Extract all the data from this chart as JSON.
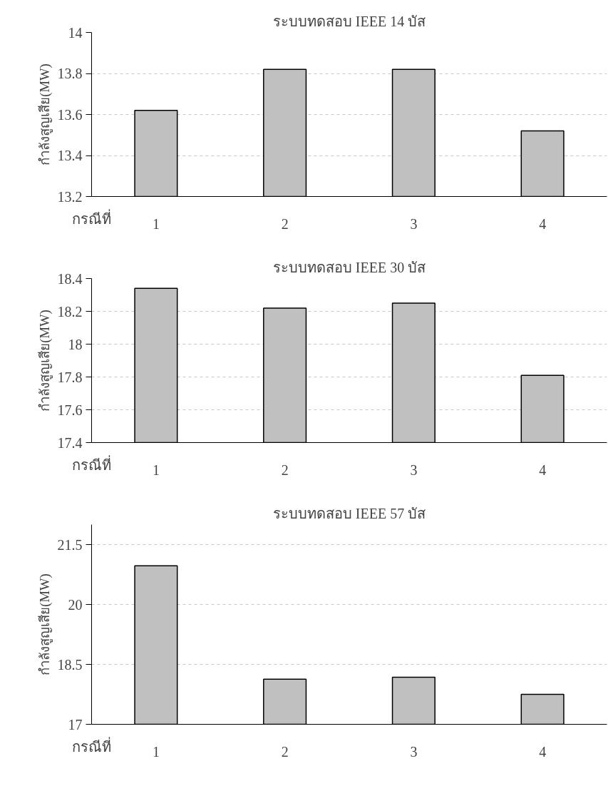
{
  "chart_data": [
    {
      "type": "bar",
      "title": "ระบบทดสอบ IEEE 14 บัส",
      "xlabel": "กรณีที่",
      "ylabel": "กำลังสูญเสีย(MW)",
      "categories": [
        "1",
        "2",
        "3",
        "4"
      ],
      "values": [
        13.62,
        13.82,
        13.82,
        13.52
      ],
      "color": "#c0c0c0",
      "ylim": [
        13.2,
        14
      ],
      "yticks": [
        13.2,
        13.4,
        13.6,
        13.8,
        14
      ],
      "grid": "y"
    },
    {
      "type": "bar",
      "title": "ระบบทดสอบ IEEE 30 บัส",
      "xlabel": "กรณีที่",
      "ylabel": "กำลังสูญเสีย(MW)",
      "categories": [
        "1",
        "2",
        "3",
        "4"
      ],
      "values": [
        18.34,
        18.22,
        18.25,
        17.81
      ],
      "color": "#c0c0c0",
      "ylim": [
        17.4,
        18.4
      ],
      "yticks": [
        17.4,
        17.6,
        17.8,
        18,
        18.2,
        18.4
      ],
      "grid": "y"
    },
    {
      "type": "bar",
      "title": "ระบบทดสอบ IEEE 57 บัส",
      "xlabel": "กรณีที่",
      "ylabel": "กำลังสูญเสีย(MW)",
      "categories": [
        "1",
        "2",
        "3",
        "4"
      ],
      "values": [
        20.97,
        18.13,
        18.18,
        17.75
      ],
      "color": "#c0c0c0",
      "ylim": [
        17,
        22
      ],
      "yticks": [
        17,
        18.5,
        20,
        21.5
      ],
      "grid": "y"
    }
  ]
}
